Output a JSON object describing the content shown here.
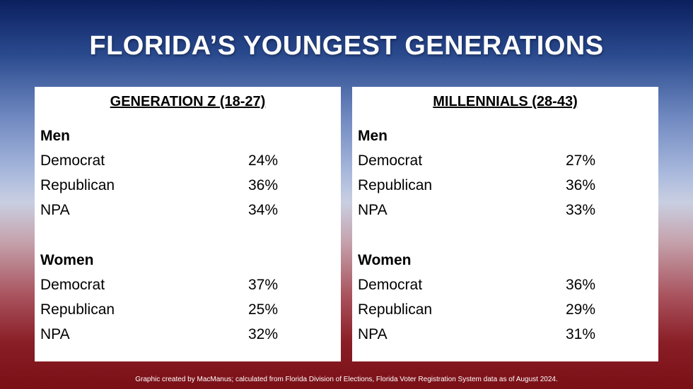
{
  "title": "FLORIDA’S YOUNGEST GENERATIONS",
  "panels": [
    {
      "heading": "GENERATION Z (18-27)",
      "men": {
        "heading": "Men",
        "rows": [
          {
            "label": "Democrat",
            "value": "24%"
          },
          {
            "label": "Republican",
            "value": "36%"
          },
          {
            "label": "NPA",
            "value": "34%"
          }
        ]
      },
      "women": {
        "heading": "Women",
        "rows": [
          {
            "label": "Democrat",
            "value": "37%"
          },
          {
            "label": "Republican",
            "value": "25%"
          },
          {
            "label": "NPA",
            "value": "32%"
          }
        ]
      }
    },
    {
      "heading": "MILLENNIALS (28-43)",
      "men": {
        "heading": "Men",
        "rows": [
          {
            "label": "Democrat",
            "value": "27%"
          },
          {
            "label": "Republican",
            "value": "36%"
          },
          {
            "label": "NPA",
            "value": "33%"
          }
        ]
      },
      "women": {
        "heading": "Women",
        "rows": [
          {
            "label": "Democrat",
            "value": "36%"
          },
          {
            "label": "Republican",
            "value": "29%"
          },
          {
            "label": "NPA",
            "value": "31%"
          }
        ]
      }
    }
  ],
  "footer": "Graphic created by MacManus; calculated from Florida Division of Elections, Florida Voter Registration System data as of August 2024."
}
